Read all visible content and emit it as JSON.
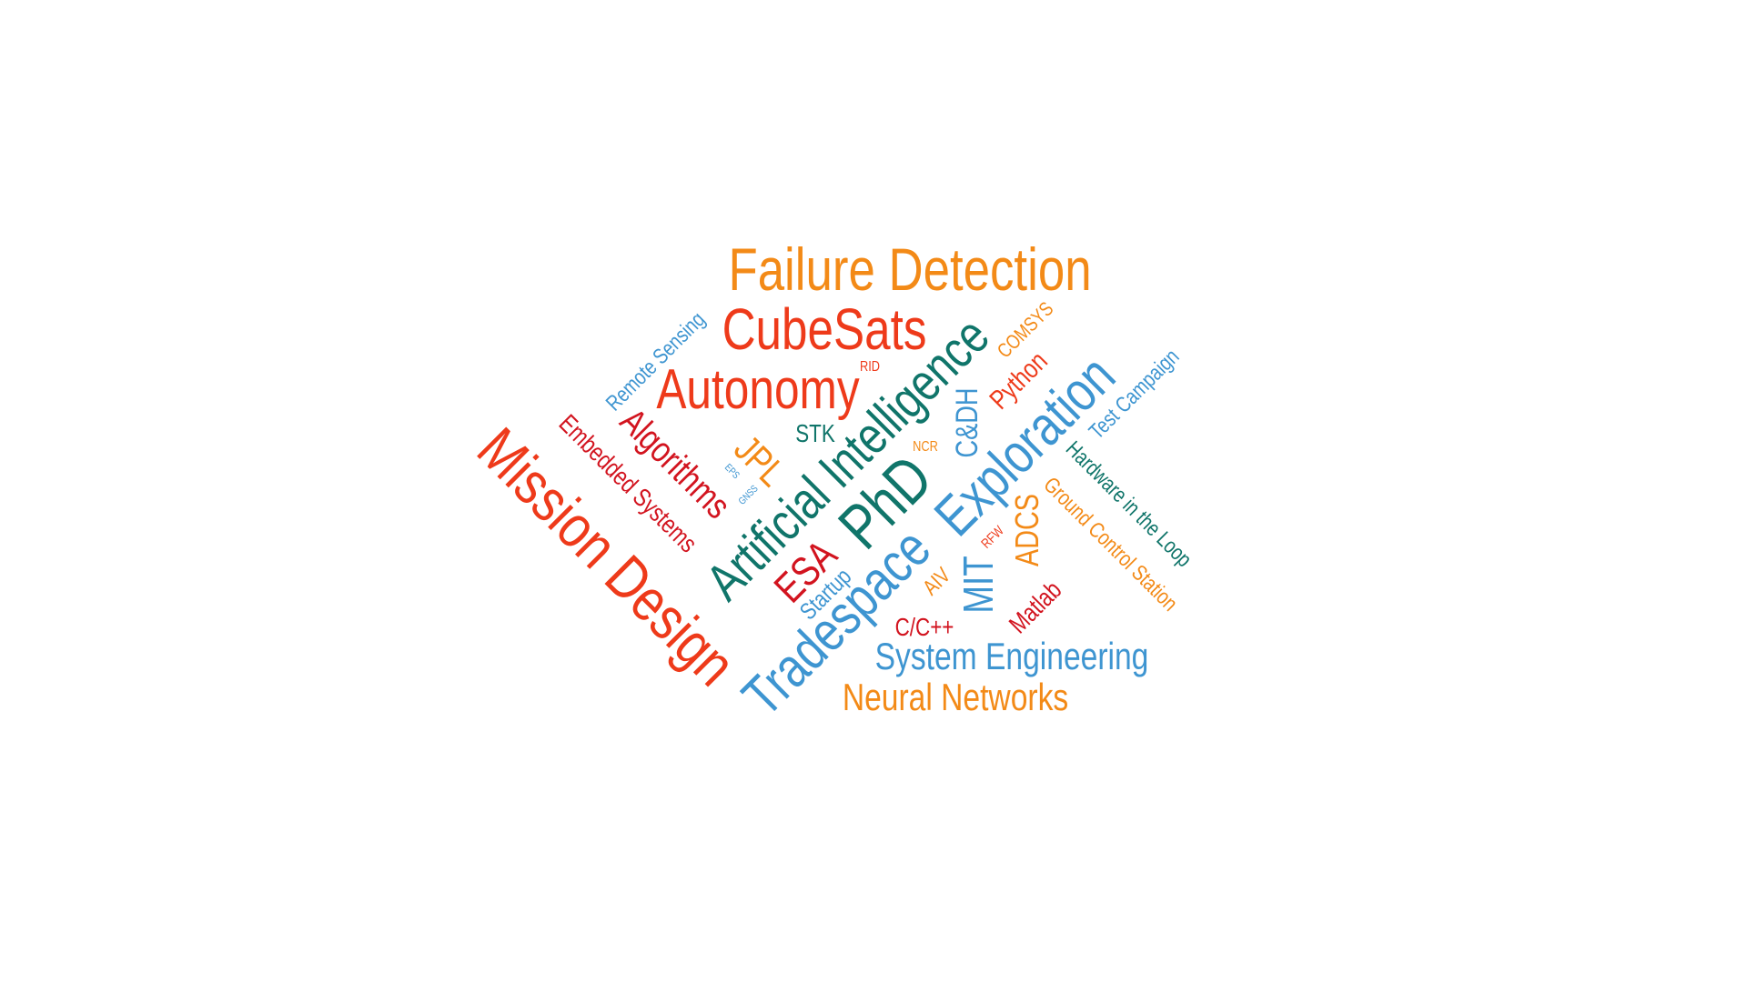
{
  "word_cloud": {
    "colors": {
      "orange": "#F38A17",
      "red": "#EE3A1A",
      "crimson": "#D2141F",
      "teal": "#10756A",
      "blue": "#3E95D1"
    },
    "words": {
      "failure_detection": "Failure Detection",
      "cubesats": "CubeSats",
      "autonomy": "Autonomy",
      "mission_design": "Mission Design",
      "artificial_intelligence": "Artificial Intelligence",
      "phd": "PhD",
      "tradespace": "Tradespace",
      "exploration": "Exploration",
      "system_engineering": "System Engineering",
      "neural_networks": "Neural Networks",
      "algorithms": "Algorithms",
      "embedded_systems": "Embedded Systems",
      "remote_sensing": "Remote Sensing",
      "rid": "RID",
      "jpl": "JPL",
      "stk": "STK",
      "eps": "EPS",
      "gnss": "GNSS",
      "esa": "ESA",
      "startup": "Startup",
      "ncr": "NCR",
      "cdh": "C&DH",
      "comsys": "COMSYS",
      "python": "Python",
      "test_campaign": "Test Campaign",
      "hardware_in_the_loop": "Hardware in the Loop",
      "ground_control_station": "Ground Control Station",
      "adcs": "ADCS",
      "rfw": "RFW",
      "aiv": "AIV",
      "mit": "MIT",
      "matlab": "Matlab",
      "c_cpp": "C/C++"
    }
  }
}
